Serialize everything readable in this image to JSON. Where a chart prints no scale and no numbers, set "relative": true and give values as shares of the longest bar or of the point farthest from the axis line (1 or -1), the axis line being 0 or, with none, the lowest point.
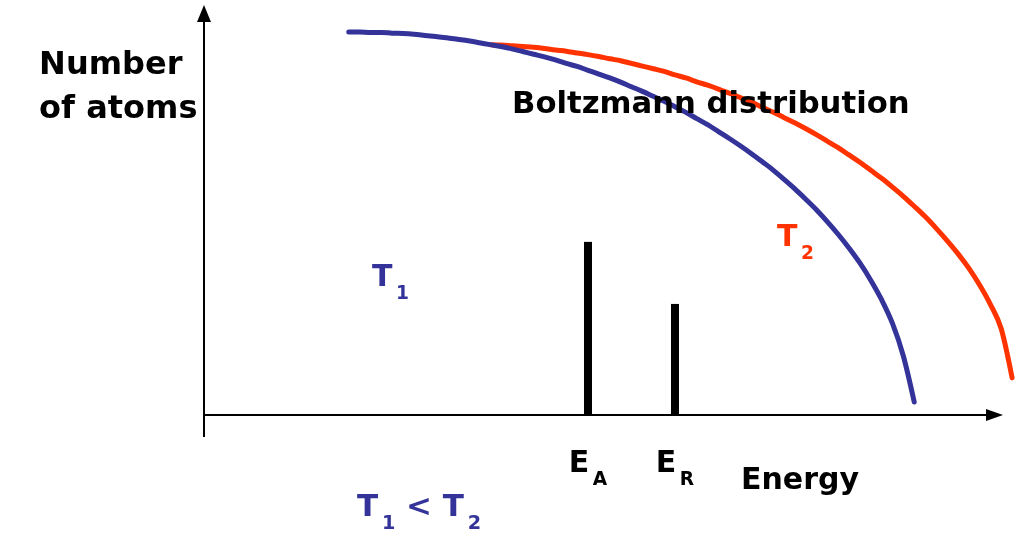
{
  "chart_data": {
    "type": "line",
    "relative": true,
    "xlabel": "Energy",
    "ylabel": "Number\nof atoms",
    "annotations": [
      "Boltzmann distribution",
      "T$_{1}$ < T$_{2}$"
    ],
    "categories": [
      null,
      null,
      null,
      null,
      null,
      null,
      null,
      null,
      null,
      null,
      null,
      null,
      null,
      null,
      null,
      null,
      null,
      null,
      null,
      null,
      null,
      null,
      "E$_{A}$",
      null,
      null,
      null,
      null,
      null,
      null,
      null,
      "E$_{R}$",
      null,
      null,
      null,
      null,
      null,
      null,
      null,
      null,
      null,
      null,
      null,
      null,
      null,
      null,
      null,
      null,
      null,
      null,
      null,
      null,
      null,
      null,
      null,
      null,
      null,
      null,
      null,
      null,
      null,
      null,
      null
    ],
    "series": [
      {
        "name": "T$_{2}$",
        "color": "#ff3300",
        "values": [
          null,
          null,
          null,
          null,
          null,
          null,
          null,
          null,
          null,
          null,
          null,
          null,
          null,
          0.967,
          0.966,
          0.964,
          0.962,
          0.96,
          0.957,
          0.953,
          0.95,
          0.945,
          0.941,
          0.936,
          0.93,
          0.925,
          0.918,
          0.911,
          0.904,
          0.897,
          0.888,
          0.88,
          0.87,
          0.861,
          0.851,
          0.84,
          0.829,
          0.817,
          0.804,
          0.791,
          0.777,
          0.763,
          0.748,
          0.732,
          0.715,
          0.698,
          0.679,
          0.66,
          0.639,
          0.618,
          0.595,
          0.571,
          0.545,
          0.518,
          0.488,
          0.456,
          0.422,
          0.384,
          0.34,
          0.289,
          0.225,
          0.097
        ]
      },
      {
        "name": "T$_{1}$",
        "color": "#333399",
        "values": [
          1,
          1,
          0.999,
          0.999,
          0.997,
          0.996,
          0.994,
          0.991,
          0.988,
          0.985,
          0.981,
          0.977,
          0.972,
          0.967,
          0.962,
          0.956,
          0.949,
          0.942,
          0.935,
          0.927,
          0.918,
          0.91,
          0.9,
          0.89,
          0.88,
          0.869,
          0.857,
          0.845,
          0.832,
          0.819,
          0.805,
          0.79,
          0.774,
          0.758,
          0.74,
          0.722,
          0.703,
          0.683,
          0.662,
          0.64,
          0.616,
          0.591,
          0.564,
          0.536,
          0.505,
          0.472,
          0.436,
          0.397,
          0.352,
          0.301,
          0.239,
          0.154,
          0.034,
          null,
          null,
          null,
          null,
          null,
          null,
          null,
          null,
          null
        ]
      },
      {
        "type": "bar",
        "color": "#000000",
        "values": [
          null,
          null,
          null,
          null,
          null,
          null,
          null,
          null,
          null,
          null,
          null,
          null,
          null,
          null,
          null,
          null,
          null,
          null,
          null,
          null,
          null,
          null,
          0.452,
          null,
          null,
          null,
          null,
          null,
          null,
          null,
          0.29,
          null,
          null,
          null,
          null,
          null,
          null,
          null,
          null,
          null,
          null,
          null,
          null,
          null,
          null,
          null,
          null,
          null,
          null,
          null,
          null,
          null,
          null,
          null,
          null,
          null,
          null,
          null,
          null,
          null,
          null,
          null
        ]
      }
    ]
  }
}
